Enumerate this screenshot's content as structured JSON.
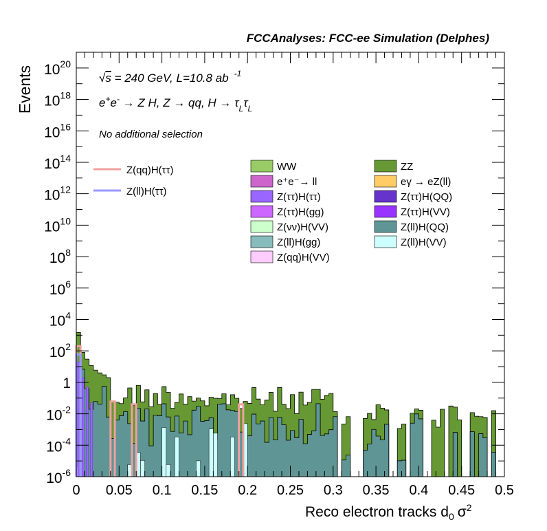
{
  "header": {
    "title": "FCCAnalyses: FCC-ee Simulation (Delphes)"
  },
  "annotations": {
    "energy_sqrt": "√",
    "energy_s": "s",
    "energy_rest": " = 240 GeV, L=10.8 ab",
    "energy_exp": "-1",
    "process": "e⁺e⁻ → Z H, Z → qq, H → τ_L τ_L",
    "p_e1": "e",
    "p_plus": "+",
    "p_e2": "e",
    "p_minus": "-",
    "p_mid1": " → Z H, Z  → qq, H  → ",
    "p_tau1": "τ",
    "p_L1": "L",
    "p_tau2": "τ",
    "p_L2": "L",
    "selection": "No additional selection"
  },
  "axes": {
    "ylabel": "Events",
    "xlabel_main": "Reco electron tracks d",
    "xlabel_sub": "0",
    "xlabel_sigma": "σ",
    "xlabel_sup": "2",
    "xticks": [
      "0",
      "0.05",
      "0.1",
      "0.15",
      "0.2",
      "0.25",
      "0.3",
      "0.35",
      "0.4",
      "0.45",
      "0.5"
    ],
    "ytick_base": "10",
    "yexps": [
      "-6",
      "-4",
      "-2",
      "2",
      "4",
      "6",
      "8",
      "10",
      "12",
      "14",
      "16",
      "18",
      "20"
    ],
    "ytick_one": "1"
  },
  "legend_signal": [
    {
      "label": "Z(qq)H(ττ)",
      "color": "#f0a0a0"
    },
    {
      "label": "Z(ll)H(ττ)",
      "color": "#9999ff"
    }
  ],
  "legend_bkg": [
    {
      "label": "WW",
      "color": "#99cc66"
    },
    {
      "label": "ZZ",
      "color": "#669933"
    },
    {
      "label": "e⁺e⁻→ ll",
      "color": "#cc66cc"
    },
    {
      "label": "eγ → eZ(ll)",
      "color": "#ffcc66"
    },
    {
      "label": "Z(ττ)H(ττ)",
      "color": "#9966ff"
    },
    {
      "label": "Z(ττ)H(QQ)",
      "color": "#6633cc"
    },
    {
      "label": "Z(ττ)H(gg)",
      "color": "#cc66ff"
    },
    {
      "label": "Z(ττ)H(VV)",
      "color": "#9933ff"
    },
    {
      "label": "Z(νν)H(VV)",
      "color": "#ccffcc"
    },
    {
      "label": "Z(ll)H(QQ)",
      "color": "#5f9595"
    },
    {
      "label": "Z(ll)H(gg)",
      "color": "#88bbbb"
    },
    {
      "label": "Z(ll)H(VV)",
      "color": "#ccffff"
    },
    {
      "label": "Z(qq)H(VV)",
      "color": "#ffccff"
    }
  ],
  "chart_data": {
    "type": "bar",
    "title": "FCCAnalyses: FCC-ee Simulation (Delphes)",
    "xlabel": "Reco electron tracks d0 σ²",
    "ylabel": "Events",
    "xlim": [
      0,
      0.5
    ],
    "ylim": [
      1e-06,
      1e+21
    ],
    "log_y": true,
    "bin_width": 0.005,
    "stacked_total_first_bins": [
      {
        "x": 0.0,
        "y": 1500
      },
      {
        "x": 0.005,
        "y": 80
      },
      {
        "x": 0.01,
        "y": 30
      },
      {
        "x": 0.015,
        "y": 12
      },
      {
        "x": 0.02,
        "y": 6
      },
      {
        "x": 0.025,
        "y": 4
      },
      {
        "x": 0.03,
        "y": 3
      },
      {
        "x": 0.035,
        "y": 2
      }
    ],
    "series_peaks": [
      {
        "name": "Z(qq)H(ττ)",
        "x": 0.0,
        "y": 200
      },
      {
        "name": "Z(qq)H(ττ)",
        "x": 0.04,
        "y": 0.06
      },
      {
        "name": "Z(qq)H(ττ)",
        "x": 0.065,
        "y": 0.04
      },
      {
        "name": "Z(qq)H(ττ)",
        "x": 0.19,
        "y": 0.04
      },
      {
        "name": "Z(ll)H(ττ)",
        "x": 0.0,
        "y": 60
      }
    ]
  }
}
